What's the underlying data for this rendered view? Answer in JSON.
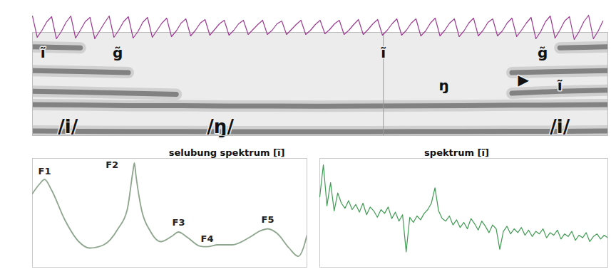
{
  "chart_data": [
    {
      "type": "line",
      "color": "#9b3b92",
      "x": [
        0,
        5,
        10,
        15,
        20,
        25,
        30,
        35,
        40,
        45,
        50,
        55,
        60,
        65,
        70,
        75,
        80,
        85,
        90,
        95,
        100,
        105,
        110,
        115,
        120,
        125,
        130,
        135,
        140,
        145,
        150,
        155,
        160,
        165,
        170,
        175,
        180,
        185,
        190,
        195,
        200,
        205,
        210,
        215,
        220,
        225,
        230,
        235,
        240,
        245,
        250,
        255,
        260,
        265,
        270,
        275,
        280,
        285,
        290,
        295,
        300,
        305,
        310,
        315,
        320,
        325,
        330,
        335,
        340,
        345,
        350,
        355,
        360,
        365,
        370,
        375,
        380,
        385,
        390,
        395,
        400,
        405,
        410,
        415,
        420,
        425,
        430,
        435,
        440,
        445,
        450,
        455,
        460,
        465,
        470,
        475,
        480,
        485,
        490,
        495,
        500,
        505,
        510,
        515,
        520,
        525,
        530,
        535,
        540,
        545,
        550,
        555,
        560,
        565,
        570,
        575,
        580,
        585,
        590,
        595
      ],
      "values": [
        0.8,
        -0.7,
        -0.2,
        0.4,
        0.75,
        -0.8,
        -0.3,
        0.35,
        0.8,
        -0.75,
        -0.2,
        0.4,
        0.7,
        -0.8,
        -0.25,
        0.3,
        0.8,
        -0.7,
        -0.2,
        0.4,
        0.75,
        -0.75,
        -0.3,
        0.35,
        0.7,
        -0.7,
        -0.2,
        0.3,
        0.65,
        -0.65,
        -0.25,
        0.3,
        0.6,
        -0.6,
        -0.2,
        0.3,
        0.55,
        -0.55,
        -0.15,
        0.25,
        0.5,
        -0.55,
        -0.2,
        0.25,
        0.5,
        -0.5,
        -0.15,
        0.2,
        0.5,
        -0.5,
        -0.2,
        0.25,
        0.45,
        -0.5,
        -0.15,
        0.2,
        0.5,
        -0.5,
        -0.2,
        0.2,
        0.5,
        -0.45,
        -0.15,
        0.25,
        0.5,
        -0.5,
        -0.2,
        0.2,
        0.55,
        -0.5,
        -0.15,
        0.25,
        0.55,
        -0.55,
        -0.2,
        0.25,
        0.6,
        -0.55,
        -0.2,
        0.3,
        0.6,
        -0.6,
        -0.25,
        0.3,
        0.65,
        -0.6,
        -0.2,
        0.3,
        0.6,
        -0.65,
        -0.25,
        0.3,
        0.65,
        -0.6,
        -0.2,
        0.35,
        0.6,
        -0.6,
        -0.25,
        0.3,
        0.65,
        -0.65,
        -0.2,
        0.3,
        0.7,
        -0.8,
        -0.3,
        0.4,
        0.8,
        -0.75,
        -0.2,
        0.45,
        0.75,
        -0.85,
        -0.3,
        0.4,
        0.85,
        -0.8,
        -0.25,
        0.45
      ],
      "xlim": [
        0,
        600
      ],
      "ylim": [
        -1,
        1
      ],
      "tick_labels": false
    },
    {
      "type": "spectrogram",
      "x": [
        0,
        50,
        100,
        150,
        200,
        250,
        300,
        350,
        400,
        450,
        500,
        550,
        600
      ],
      "bands": [
        [
          220,
          210,
          200,
          200,
          190,
          190,
          190,
          190,
          200,
          200,
          210,
          210,
          220
        ],
        [
          1500,
          1480,
          1450,
          1450,
          1430,
          1430,
          1420,
          1430,
          1440,
          1450,
          1470,
          1480,
          1500
        ],
        [
          2150,
          2100,
          2050,
          2000,
          null,
          null,
          null,
          null,
          null,
          null,
          2050,
          2150,
          2200
        ],
        [
          3150,
          3100,
          3050,
          null,
          null,
          null,
          null,
          null,
          null,
          null,
          3050,
          3100,
          3150
        ],
        [
          4300,
          4250,
          null,
          null,
          null,
          null,
          null,
          null,
          null,
          null,
          null,
          4250,
          4300
        ]
      ],
      "cursor_x": 366,
      "xlim": [
        0,
        600
      ],
      "ylim": [
        0,
        5000
      ],
      "tick_labels": false,
      "annotations": [
        {
          "text": "ĩ",
          "x": 11,
          "y": 4000
        },
        {
          "text": "g̃",
          "x": 89,
          "y": 4000
        },
        {
          "text": "ĩ",
          "x": 366,
          "y": 4000
        },
        {
          "text": "g̃",
          "x": 532,
          "y": 4000
        },
        {
          "text": "ŋ",
          "x": 429,
          "y": 2414
        },
        {
          "text": "▶",
          "x": 512,
          "y": 2690
        },
        {
          "text": "ĩ",
          "x": 550,
          "y": 2414
        }
      ],
      "phoneme_labels": [
        {
          "text": "/i/",
          "x": 37,
          "y": 420
        },
        {
          "text": "/ŋ/",
          "x": 196,
          "y": 420
        },
        {
          "text": "/i/",
          "x": 550,
          "y": 420
        }
      ]
    },
    {
      "type": "line",
      "title": "selubung spektrum [ĩ]",
      "color": "#8ea58e",
      "x": [
        0,
        130,
        221,
        351,
        584,
        844,
        1039,
        1299,
        1558,
        1727,
        1831,
        1857,
        1883,
        1987,
        2143,
        2338,
        2532,
        2662,
        2818,
        3052,
        3182,
        3377,
        3636,
        3961,
        4156,
        4286,
        4455,
        4675,
        4844,
        4935,
        5000
      ],
      "values": [
        57.5,
        65,
        68.5,
        60,
        37.5,
        20,
        15,
        17.5,
        30,
        45,
        75,
        81.5,
        72.5,
        45,
        28.5,
        20,
        24,
        27.5,
        23.5,
        16.5,
        16,
        17.5,
        17.5,
        23.5,
        28.5,
        30,
        26.5,
        15,
        8.5,
        15,
        25
      ],
      "xlim": [
        0,
        5000
      ],
      "ylim": [
        0,
        85
      ],
      "tick_labels": false,
      "annotations": [
        {
          "text": "F1",
          "x": 221,
          "y": 75
        },
        {
          "text": "F2",
          "x": 1450,
          "y": 80
        },
        {
          "text": "F3",
          "x": 2662,
          "y": 35
        },
        {
          "text": "F4",
          "x": 3182,
          "y": 22
        },
        {
          "text": "F5",
          "x": 4286,
          "y": 37
        }
      ]
    },
    {
      "type": "line",
      "title": "spektrum [ĩ]",
      "color": "#3f9a52",
      "x": [
        0,
        62.5,
        125,
        187.5,
        250,
        312.5,
        375,
        437.5,
        500,
        562.5,
        625,
        687.5,
        750,
        812.5,
        875,
        937.5,
        1000,
        1062.5,
        1125,
        1187.5,
        1250,
        1312.5,
        1375,
        1437.5,
        1500,
        1562.5,
        1625,
        1687.5,
        1750,
        1812.5,
        1875,
        1937.5,
        2000,
        2062.5,
        2125,
        2187.5,
        2250,
        2312.5,
        2375,
        2437.5,
        2500,
        2562.5,
        2625,
        2687.5,
        2750,
        2812.5,
        2875,
        2937.5,
        3000,
        3062.5,
        3125,
        3187.5,
        3250,
        3312.5,
        3375,
        3437.5,
        3500,
        3562.5,
        3625,
        3687.5,
        3750,
        3812.5,
        3875,
        3937.5,
        4000,
        4062.5,
        4125,
        4187.5,
        4250,
        4312.5,
        4375,
        4437.5,
        4500,
        4562.5,
        4625,
        4687.5,
        4750,
        4812.5,
        4875,
        4937.5,
        5000
      ],
      "values": [
        55,
        80,
        48,
        66,
        44,
        58,
        50,
        46,
        52,
        45,
        49,
        43,
        50,
        41,
        47,
        44,
        39,
        45,
        42,
        47,
        38,
        43,
        36,
        41,
        12,
        39,
        35,
        40,
        37,
        42,
        45,
        50,
        62,
        44,
        38,
        36,
        40,
        33,
        37,
        31,
        35,
        30,
        38,
        34,
        29,
        36,
        32,
        27,
        33,
        30,
        14,
        28,
        32,
        26,
        30,
        27,
        31,
        25,
        29,
        24,
        28,
        26,
        30,
        23,
        27,
        25,
        29,
        22,
        26,
        24,
        28,
        21,
        25,
        23,
        27,
        20,
        24,
        26,
        22,
        25,
        23
      ],
      "xlim": [
        0,
        5000
      ],
      "ylim": [
        0,
        85
      ],
      "tick_labels": false
    }
  ]
}
